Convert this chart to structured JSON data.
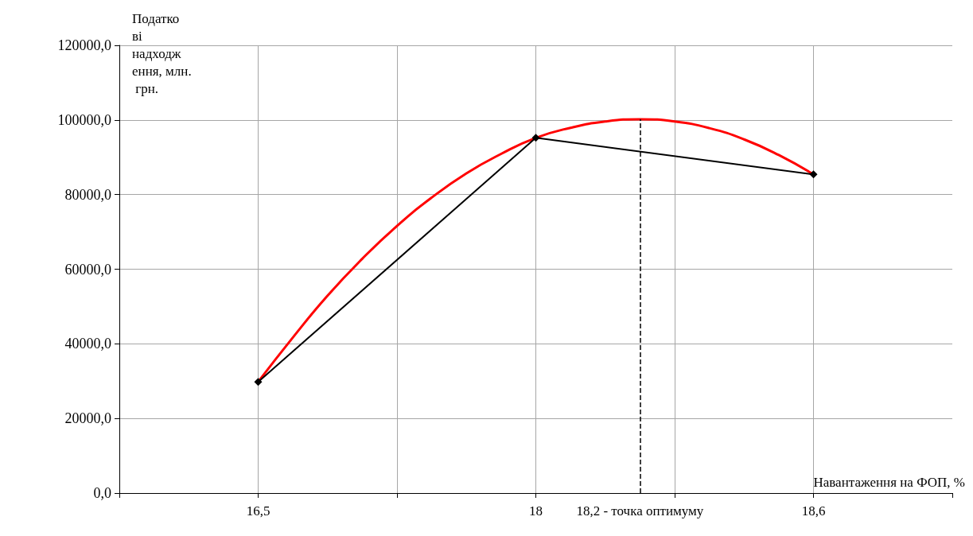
{
  "chart_data": {
    "type": "line",
    "ylabel": "Податкові надходження, млн. грн.",
    "xlabel": "Навантаження на ФОП, %",
    "categories": [
      null,
      null,
      null,
      null,
      "16,5",
      null,
      null,
      null,
      null,
      null,
      null,
      null,
      "18",
      null,
      null,
      "18,2 - точка оптимуму",
      null,
      null,
      null,
      null,
      "18,6",
      null,
      null,
      null,
      null
    ],
    "series": [
      {
        "color": "#ff0000",
        "marker": "none",
        "values": [
          null,
          null,
          null,
          null,
          29800,
          41700,
          52900,
          62800,
          71600,
          79200,
          85700,
          90900,
          95200,
          97900,
          99600,
          100200,
          99600,
          97800,
          94800,
          90600,
          85400,
          null,
          null,
          null,
          null
        ]
      },
      {
        "color": "#000000",
        "marker": "diamond",
        "values": [
          null,
          null,
          null,
          null,
          29800,
          null,
          null,
          null,
          null,
          null,
          null,
          null,
          95200,
          null,
          null,
          null,
          null,
          null,
          null,
          null,
          85400,
          null,
          null,
          null,
          null
        ]
      }
    ],
    "ylim": [
      0,
      120000
    ],
    "yticks": [
      {
        "value": 0,
        "label": "0,0"
      },
      {
        "value": 20000,
        "label": "20000,0"
      },
      {
        "value": 40000,
        "label": "40000,0"
      },
      {
        "value": 60000,
        "label": "60000,0"
      },
      {
        "value": 80000,
        "label": "80000,0"
      },
      {
        "value": 100000,
        "label": "100000,0"
      },
      {
        "value": 120000,
        "label": "120000,0"
      }
    ],
    "ref_lines": [
      {
        "axis": "x",
        "value": "18,2 - точка оптимуму",
        "color": "#000000",
        "line_style": "dashed"
      }
    ],
    "grid": true
  }
}
